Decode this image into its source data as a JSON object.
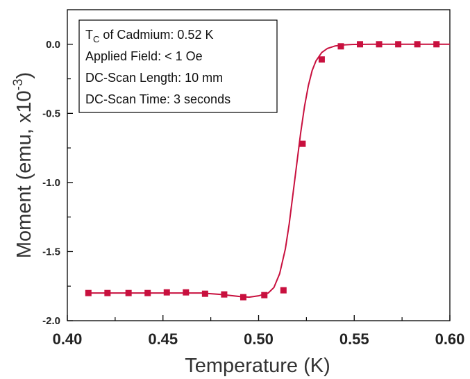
{
  "chart_data": {
    "type": "scatter",
    "title": "",
    "xlabel": "Temperature (K)",
    "ylabel_main": "Moment (emu, x10",
    "ylabel_sup": "-3",
    "ylabel_close": ")",
    "xlim": [
      0.4,
      0.6
    ],
    "ylim": [
      -2.0,
      0.25
    ],
    "xticks": [
      0.4,
      0.45,
      0.5,
      0.55,
      0.6
    ],
    "xtick_labels": [
      "0.40",
      "0.45",
      "0.50",
      "0.55",
      "0.60"
    ],
    "yticks": [
      0.0,
      -0.5,
      -1.0,
      -1.5,
      -2.0
    ],
    "ytick_labels": [
      "0.0",
      "-0.5",
      "-1.0",
      "-1.5",
      "-2.0"
    ],
    "grid": false,
    "color": "#c8103e",
    "series": [
      {
        "x": [
          0.411,
          0.421,
          0.432,
          0.442,
          0.452,
          0.462,
          0.472,
          0.482,
          0.492,
          0.503,
          0.513,
          0.523,
          0.533,
          0.543,
          0.553,
          0.563,
          0.573,
          0.583,
          0.593
        ],
        "y": [
          -1.8,
          -1.8,
          -1.8,
          -1.8,
          -1.795,
          -1.795,
          -1.805,
          -1.81,
          -1.83,
          -1.815,
          -1.78,
          -0.72,
          -0.11,
          -0.015,
          0.0,
          0.0,
          0.0,
          0.0,
          0.0
        ]
      }
    ],
    "fit_curve": {
      "x": [
        0.411,
        0.42,
        0.43,
        0.44,
        0.45,
        0.46,
        0.47,
        0.48,
        0.49,
        0.495,
        0.5,
        0.505,
        0.508,
        0.511,
        0.514,
        0.516,
        0.518,
        0.52,
        0.522,
        0.524,
        0.526,
        0.528,
        0.53,
        0.533,
        0.536,
        0.54,
        0.545,
        0.55,
        0.56,
        0.57,
        0.58,
        0.59,
        0.6
      ],
      "y": [
        -1.8,
        -1.8,
        -1.8,
        -1.8,
        -1.8,
        -1.8,
        -1.8,
        -1.81,
        -1.825,
        -1.83,
        -1.82,
        -1.8,
        -1.76,
        -1.66,
        -1.48,
        -1.3,
        -1.08,
        -0.86,
        -0.64,
        -0.45,
        -0.3,
        -0.19,
        -0.12,
        -0.06,
        -0.03,
        -0.012,
        -0.004,
        -0.001,
        0.0,
        0.0,
        0.0,
        0.0,
        0.0
      ]
    },
    "annotations": {
      "tc_prefix": "T",
      "tc_sub": "C",
      "tc_suffix": " of Cadmium: 0.52 K",
      "line2": "Applied Field: < 1 Oe",
      "line3": "DC-Scan Length: 10 mm",
      "line4": "DC-Scan Time: 3 seconds"
    }
  }
}
